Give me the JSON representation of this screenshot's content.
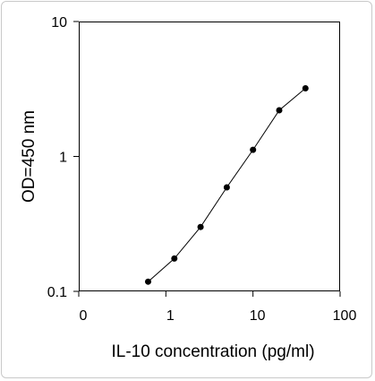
{
  "chart_data": {
    "type": "line",
    "title": "",
    "xlabel": "IL-10 concentration (pg/ml)",
    "ylabel": "OD=450 nm",
    "x_scale": "log",
    "y_scale": "log",
    "xlim": [
      0.1,
      100
    ],
    "ylim": [
      0.1,
      10
    ],
    "x_tick_labels": [
      "0",
      "1",
      "10",
      "100"
    ],
    "y_tick_labels": [
      "10",
      "1",
      "0.1"
    ],
    "grid": false,
    "legend": "none",
    "series": [
      {
        "x": [
          0.625,
          1.25,
          2.5,
          5,
          10,
          20,
          40
        ],
        "y": [
          0.118,
          0.175,
          0.3,
          0.59,
          1.12,
          2.2,
          3.2
        ],
        "color": "#000000",
        "marker": "circle"
      }
    ]
  }
}
